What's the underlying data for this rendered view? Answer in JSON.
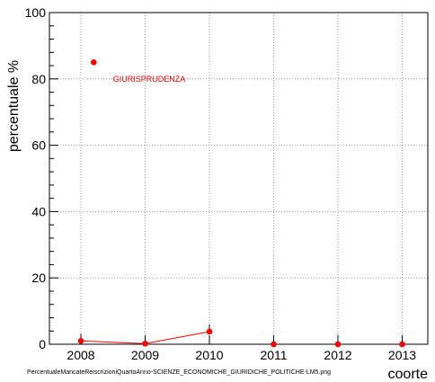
{
  "chart_data": {
    "type": "line",
    "xlabel": "coorte",
    "ylabel": "percentuale %",
    "categories": [
      "2008",
      "2009",
      "2010",
      "2011",
      "2012",
      "2013"
    ],
    "ylim": [
      0,
      100
    ],
    "yticks": [
      0,
      20,
      40,
      60,
      80,
      100
    ],
    "grid": true,
    "series": [
      {
        "values": [
          1,
          0.2,
          3.8,
          0,
          0,
          0
        ],
        "color": "#ff0000",
        "line_segments": [
          [
            0,
            1
          ],
          [
            1,
            2
          ]
        ],
        "error_bars": true
      }
    ],
    "annotations": [
      {
        "text": "GIURISPRUDENZA",
        "color": "#ff0000",
        "x": 2008.5,
        "y": 80
      }
    ],
    "extra_points": [
      {
        "x": 2008.2,
        "y": 85,
        "color": "#ff0000"
      }
    ]
  },
  "footer": {
    "filename": "PercentualeMancateReiscrizioniQuartoAnno-SCIENZE_ECONOMICHE_GIURIDICHE_POLITICHE-LM5.png"
  }
}
